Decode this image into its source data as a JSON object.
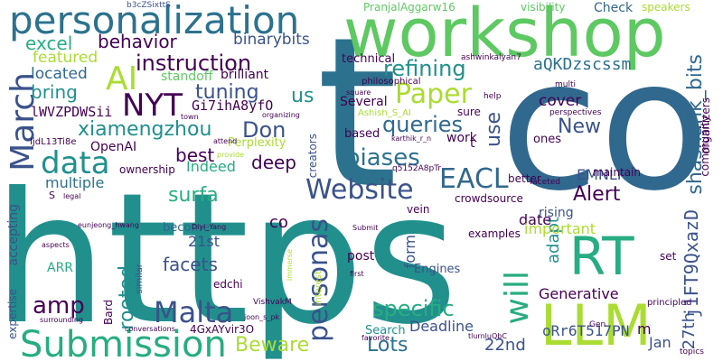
{
  "palette": {
    "deep_purple": "#440154",
    "indigo": "#3b528b",
    "blue": "#31688e",
    "teal_blue": "#2c728e",
    "teal": "#21908d",
    "green_teal": "#27ad81",
    "green": "#5ec962",
    "lime": "#aadc32",
    "yellow": "#fde725"
  },
  "words": [
    "https",
    "co",
    "t",
    "workshop",
    "RT",
    "LLM",
    "personalization",
    "Submission",
    "AI",
    "NYT",
    "Paper",
    "Website",
    "EACL",
    "March",
    "data",
    "personas",
    "will",
    "Malta",
    "amp",
    "Don",
    "instruction",
    "tuning",
    "xiamengzhou",
    "refining",
    "queries",
    "biases",
    "shashank_bits",
    "behavior",
    "binarybits",
    "excel",
    "featured",
    "bring",
    "located",
    "lWVZPDWSii",
    "Gi7ihA8yfO",
    "brilliant",
    "standoff",
    "aQKDzscssm",
    "technical",
    "ashwinkalyan7",
    "multi",
    "philosophical",
    "PranjalAggarw16",
    "visibility",
    "Check",
    "speakers",
    "b3cZSixttS",
    "cover",
    "New",
    "use",
    "us",
    "Alert",
    "EMNLP",
    "adapt",
    "form",
    "date",
    "important",
    "rising",
    "examples",
    "post",
    "Engines",
    "Search",
    "Deadline",
    "Lots",
    "Beware",
    "specific",
    "Generative",
    "22nd",
    "27th",
    "Jan",
    "oRr6T517PN",
    "m",
    "j1FT9QxazD",
    "community",
    "organizers",
    "set",
    "principled",
    "Gen",
    "topics",
    "best",
    "deep",
    "surfa",
    "Indeed",
    "multiple",
    "OpenAI",
    "Perplexity",
    "ownership",
    "IjdL13Ti8e",
    "rooted",
    "facets",
    "21st",
    "become",
    "ARR",
    "accepting",
    "expertise",
    "similar",
    "Bard",
    "edchi",
    "4GxAYvir3O",
    "VishvakM",
    "conversations",
    "surrounding",
    "aspects",
    "eunjeong_hwang",
    "Diyi_Yang",
    "legal",
    "S",
    "creators",
    "based",
    "Several",
    "sure",
    "work",
    "maintain",
    "ones",
    "perspectives",
    "help",
    "faceted",
    "better",
    "crowdsource",
    "vein",
    "q5152A8pTr",
    "karthik_r_n",
    "Ashish_S_AI",
    "square",
    "town",
    "attend",
    "provide",
    "organizing",
    "interest",
    "immerse",
    "Submit",
    "first",
    "favorite",
    "tlurnluQbC",
    "joon_s_pk",
    "co",
    "t"
  ]
}
